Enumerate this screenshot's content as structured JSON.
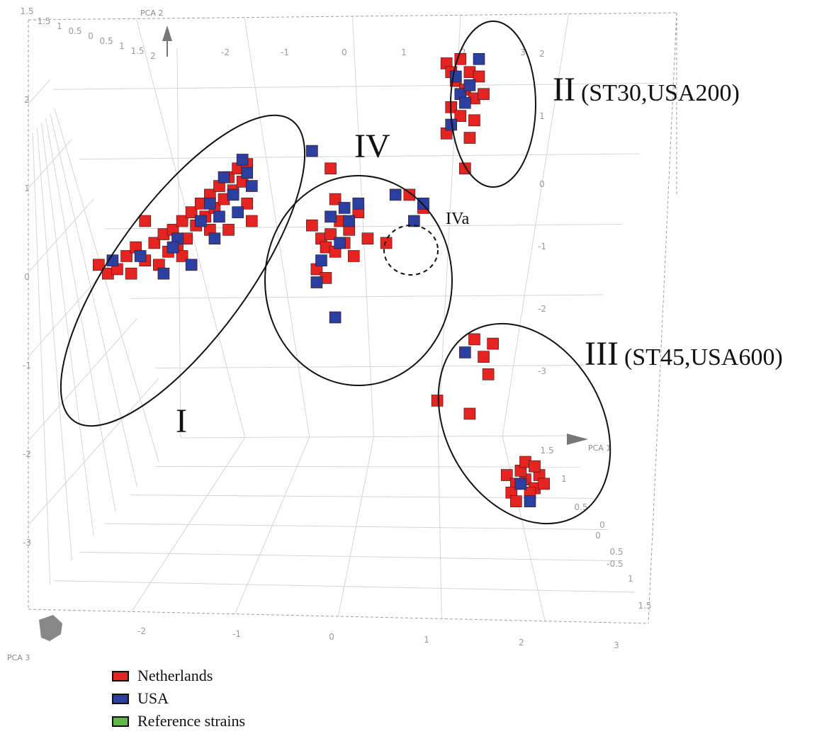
{
  "chart_data": {
    "type": "scatter",
    "dimensions": 3,
    "axes": {
      "x": {
        "title": "PCA 1",
        "ticks": [
          "-2",
          "-1",
          "0",
          "1",
          "2",
          "3"
        ]
      },
      "y": {
        "title": "PCA 2",
        "ticks": [
          "2",
          "1",
          "0",
          "-1",
          "-2",
          "-3"
        ]
      },
      "z": {
        "title": "PCA 3",
        "ticks": [
          "-1.5",
          "-1",
          "-0.5",
          "0",
          "0.5",
          "1",
          "1.5"
        ]
      },
      "x_range": [
        -2.5,
        3
      ],
      "y_range": [
        -3,
        2.5
      ],
      "z_range": [
        -1.5,
        1.5
      ]
    },
    "back_wall_ticks": {
      "top_x": [
        "-2",
        "-1",
        "0",
        "1",
        "2",
        "3"
      ],
      "top_z": [
        "1.5",
        "1",
        "0.5",
        "0",
        "0.5",
        "1",
        "1.5",
        "2"
      ],
      "right_y": [
        "2",
        "1",
        "0",
        "-1",
        "-2",
        "-3"
      ],
      "right_z": [
        "1.5",
        "1",
        "0.5",
        "0",
        "-0.5"
      ],
      "left_y": [
        "1.5",
        "2",
        "1",
        "0",
        "-1",
        "-2",
        "-3"
      ]
    },
    "legend": [
      {
        "label": "Netherlands",
        "color": "#e52421"
      },
      {
        "label": "USA",
        "color": "#2a3fa0"
      },
      {
        "label": "Reference strains",
        "color": "#5cb947"
      }
    ],
    "clusters": [
      {
        "label": "I",
        "extra": ""
      },
      {
        "label": "II",
        "extra": "(ST30,USA200)"
      },
      {
        "label": "III",
        "extra": "(ST45,USA600)"
      },
      {
        "label": "IV",
        "extra": ""
      },
      {
        "label": "IVa",
        "extra": ""
      }
    ],
    "series": [
      {
        "name": "Netherlands",
        "points": [
          [
            -2.2,
            -0.2
          ],
          [
            -2.1,
            -0.3
          ],
          [
            -2.0,
            -0.25
          ],
          [
            -1.9,
            -0.1
          ],
          [
            -1.85,
            -0.3
          ],
          [
            -1.8,
            0.0
          ],
          [
            -1.7,
            -0.15
          ],
          [
            -1.6,
            0.05
          ],
          [
            -1.55,
            -0.2
          ],
          [
            -1.5,
            0.15
          ],
          [
            -1.45,
            -0.05
          ],
          [
            -1.4,
            0.2
          ],
          [
            -1.35,
            0.0
          ],
          [
            -1.3,
            0.3
          ],
          [
            -1.25,
            0.1
          ],
          [
            -1.2,
            0.4
          ],
          [
            -1.15,
            0.25
          ],
          [
            -1.1,
            0.5
          ],
          [
            -1.05,
            0.35
          ],
          [
            -1.0,
            0.6
          ],
          [
            -0.95,
            0.45
          ],
          [
            -0.9,
            0.7
          ],
          [
            -0.85,
            0.55
          ],
          [
            -0.8,
            0.8
          ],
          [
            -0.75,
            0.65
          ],
          [
            -0.7,
            0.9
          ],
          [
            -0.65,
            0.75
          ],
          [
            -0.6,
            0.5
          ],
          [
            -0.55,
            0.3
          ],
          [
            -1.7,
            0.3
          ],
          [
            -1.3,
            -0.1
          ],
          [
            -1.0,
            0.2
          ],
          [
            -0.8,
            0.2
          ],
          [
            -0.6,
            0.95
          ],
          [
            0.1,
            0.25
          ],
          [
            0.2,
            0.1
          ],
          [
            0.25,
            0.0
          ],
          [
            0.3,
            0.15
          ],
          [
            0.35,
            -0.05
          ],
          [
            0.4,
            0.3
          ],
          [
            0.45,
            0.05
          ],
          [
            0.5,
            0.2
          ],
          [
            0.55,
            -0.1
          ],
          [
            0.6,
            0.4
          ],
          [
            0.15,
            -0.25
          ],
          [
            0.25,
            -0.35
          ],
          [
            0.35,
            0.55
          ],
          [
            0.7,
            0.1
          ],
          [
            0.9,
            0.05
          ],
          [
            1.15,
            0.6
          ],
          [
            1.3,
            0.45
          ],
          [
            0.3,
            0.9
          ],
          [
            1.55,
            2.1
          ],
          [
            1.6,
            2.0
          ],
          [
            1.65,
            1.9
          ],
          [
            1.7,
            2.15
          ],
          [
            1.75,
            1.8
          ],
          [
            1.8,
            2.0
          ],
          [
            1.85,
            1.7
          ],
          [
            1.9,
            1.95
          ],
          [
            1.6,
            1.6
          ],
          [
            1.7,
            1.5
          ],
          [
            1.85,
            1.45
          ],
          [
            1.55,
            1.3
          ],
          [
            1.8,
            1.25
          ],
          [
            1.95,
            1.75
          ],
          [
            1.75,
            0.9
          ],
          [
            1.85,
            -1.05
          ],
          [
            1.95,
            -1.25
          ],
          [
            2.0,
            -1.45
          ],
          [
            1.8,
            -1.9
          ],
          [
            1.45,
            -1.75
          ],
          [
            2.05,
            -1.1
          ],
          [
            2.2,
            -2.6
          ],
          [
            2.3,
            -2.7
          ],
          [
            2.4,
            -2.65
          ],
          [
            2.5,
            -2.75
          ],
          [
            2.35,
            -2.55
          ],
          [
            2.45,
            -2.8
          ],
          [
            2.55,
            -2.6
          ],
          [
            2.25,
            -2.8
          ],
          [
            2.6,
            -2.7
          ],
          [
            2.4,
            -2.45
          ],
          [
            2.5,
            -2.5
          ],
          [
            2.3,
            -2.9
          ]
        ]
      },
      {
        "name": "USA",
        "points": [
          [
            -2.05,
            -0.15
          ],
          [
            -1.75,
            -0.1
          ],
          [
            -1.5,
            -0.3
          ],
          [
            -1.35,
            0.1
          ],
          [
            -1.2,
            -0.2
          ],
          [
            -1.1,
            0.3
          ],
          [
            -1.0,
            0.5
          ],
          [
            -0.9,
            0.35
          ],
          [
            -0.85,
            0.8
          ],
          [
            -0.75,
            0.6
          ],
          [
            -0.7,
            0.4
          ],
          [
            -0.65,
            1.0
          ],
          [
            -0.6,
            0.85
          ],
          [
            -0.55,
            0.7
          ],
          [
            -1.4,
            0.0
          ],
          [
            -0.95,
            0.1
          ],
          [
            0.3,
            0.35
          ],
          [
            0.4,
            0.05
          ],
          [
            0.45,
            0.45
          ],
          [
            0.5,
            0.3
          ],
          [
            0.2,
            -0.15
          ],
          [
            0.15,
            -0.4
          ],
          [
            0.6,
            0.5
          ],
          [
            0.35,
            -0.8
          ],
          [
            0.1,
            1.1
          ],
          [
            1.0,
            0.6
          ],
          [
            1.3,
            0.5
          ],
          [
            1.2,
            0.3
          ],
          [
            1.65,
            1.95
          ],
          [
            1.7,
            1.75
          ],
          [
            1.8,
            1.85
          ],
          [
            1.9,
            2.15
          ],
          [
            1.75,
            1.65
          ],
          [
            1.6,
            1.4
          ],
          [
            1.75,
            -1.2
          ],
          [
            2.35,
            -2.7
          ],
          [
            2.45,
            -2.9
          ]
        ]
      }
    ]
  }
}
